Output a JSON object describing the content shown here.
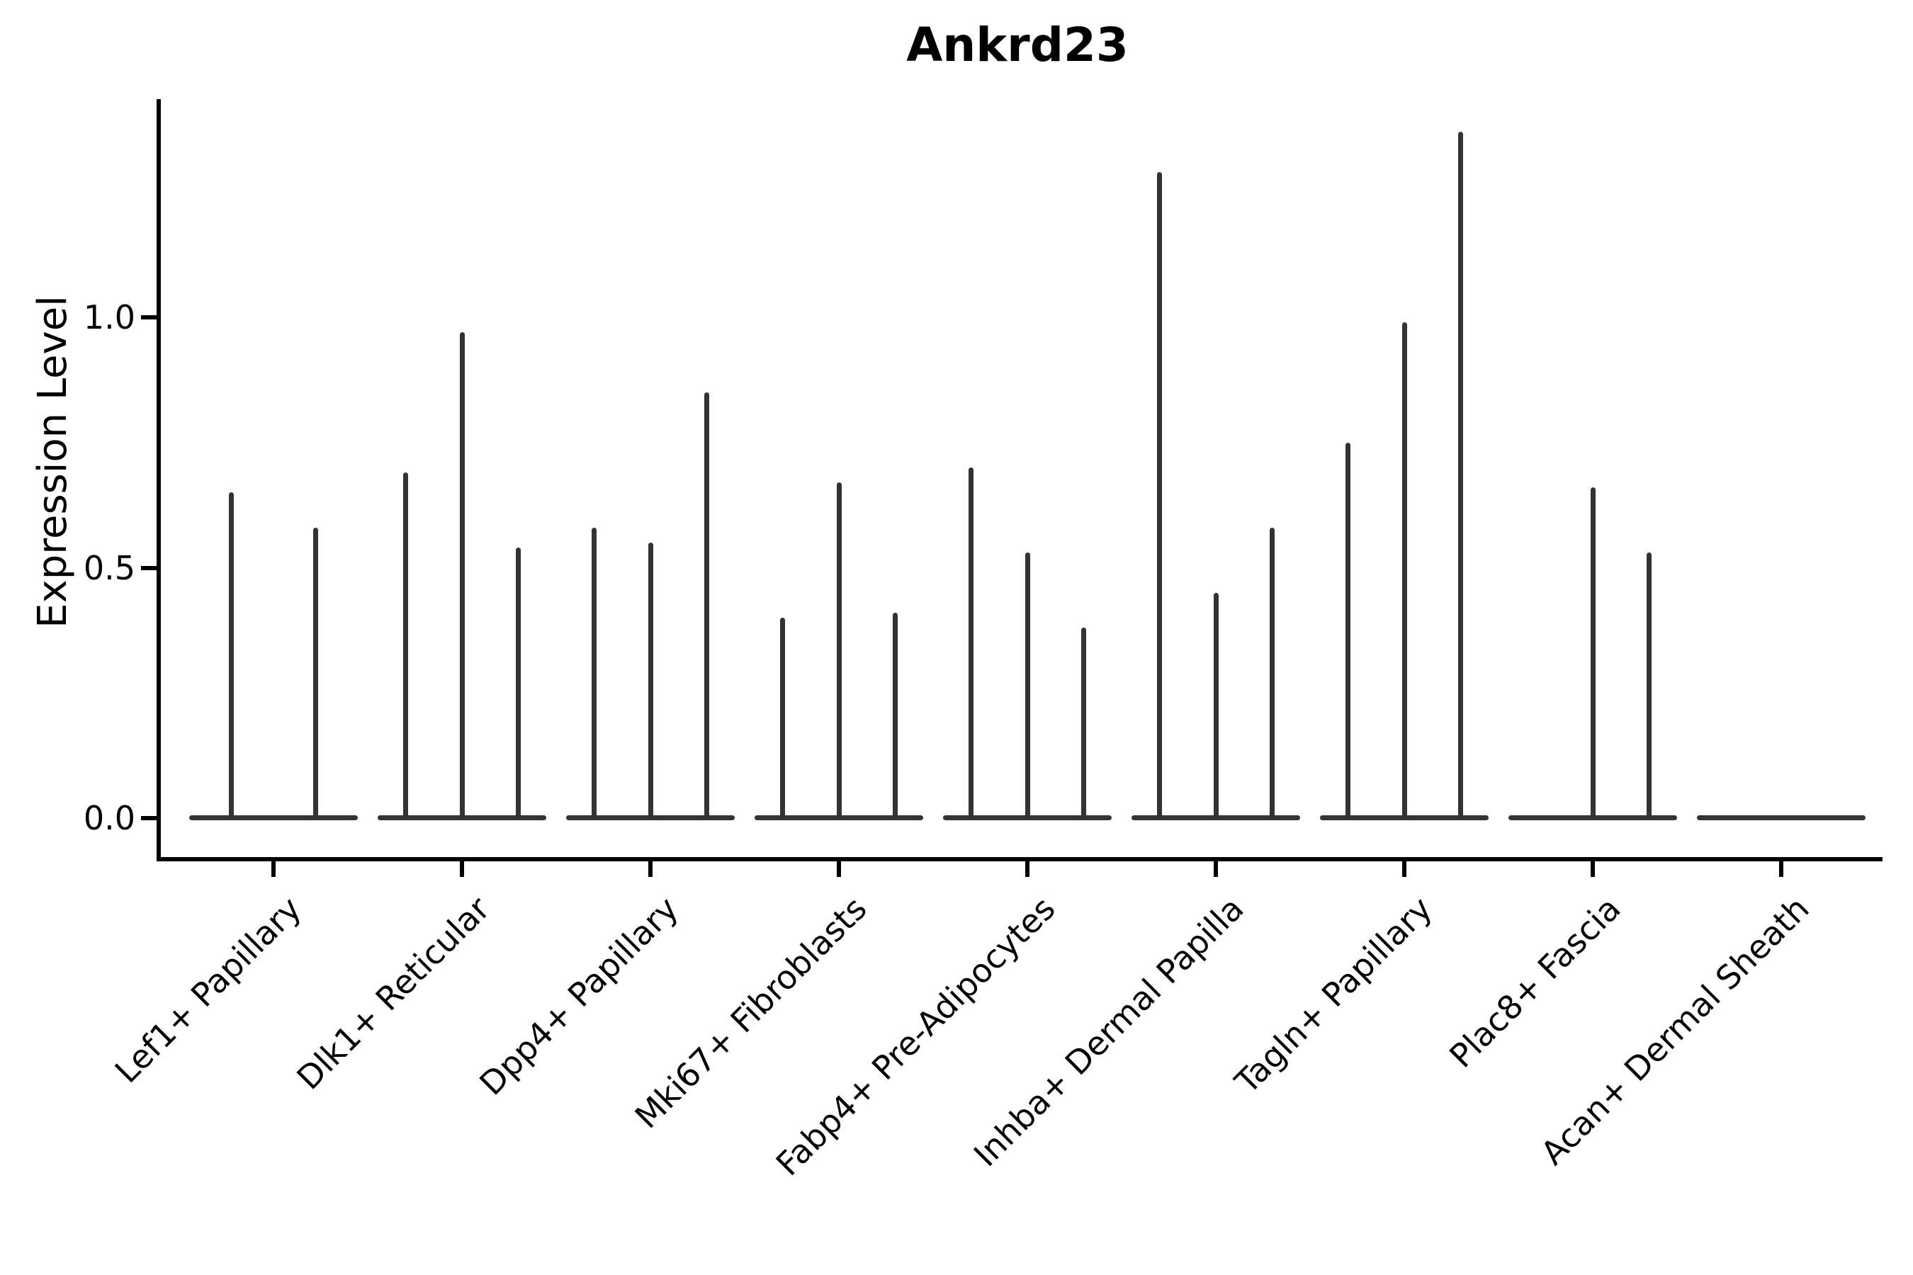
{
  "chart_data": {
    "type": "violin",
    "title": "Ankrd23",
    "ylabel": "Expression Level",
    "xlabel": "",
    "legend": "none",
    "grid": false,
    "background": "#ffffff",
    "ylim": [
      0,
      1.45
    ],
    "yticks": [
      {
        "value": 0.0,
        "label": "0.0"
      },
      {
        "value": 0.5,
        "label": "0.5"
      },
      {
        "value": 1.0,
        "label": "1.0"
      }
    ],
    "colors": {
      "violin": "#333333",
      "axis": "#000000",
      "text": "#000000"
    },
    "note": "Each category shows thin needle violins of expression; values are max expression height per violin, 0 = flat baseline violin",
    "categories": [
      {
        "label": "Lef1+ Papillary",
        "violins": [
          0.65,
          0.58
        ]
      },
      {
        "label": "Dlk1+ Reticular",
        "violins": [
          0.69,
          0.97,
          0.54
        ]
      },
      {
        "label": "Dpp4+ Papillary",
        "violins": [
          0.58,
          0.55,
          0.85
        ]
      },
      {
        "label": "Mki67+ Fibroblasts",
        "violins": [
          0.4,
          0.67,
          0.41
        ]
      },
      {
        "label": "Fabp4+ Pre-Adipocytes",
        "violins": [
          0.7,
          0.53,
          0.38
        ]
      },
      {
        "label": "Inhba+ Dermal Papilla",
        "violins": [
          1.29,
          0.45,
          0.58
        ]
      },
      {
        "label": "Tagln+ Papillary",
        "violins": [
          0.75,
          0.99,
          1.37
        ]
      },
      {
        "label": "Plac8+ Fascia",
        "violins": [
          0.0,
          0.66,
          0.53
        ]
      },
      {
        "label": "Acan+ Dermal Sheath",
        "violins": [
          0.0,
          0.0,
          0.0
        ]
      }
    ]
  }
}
